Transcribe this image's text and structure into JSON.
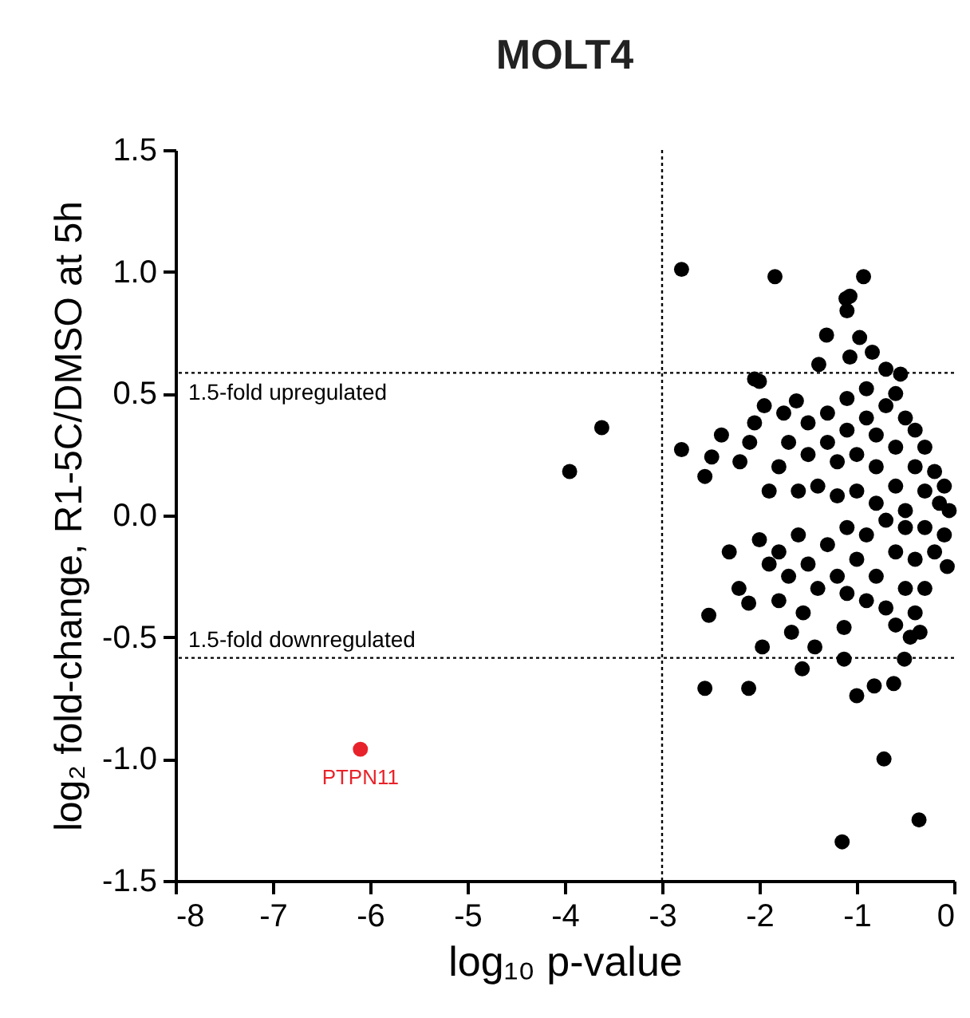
{
  "chart_data": {
    "type": "scatter",
    "title": "MOLT4",
    "xlabel": "log₁₀ p-value",
    "ylabel": "log₂ fold-change, R1-5C/DMSO at 5h",
    "xlim": [
      -8,
      0
    ],
    "xticks": [
      -8,
      -7,
      -6,
      -5,
      -4,
      -3,
      -2,
      -1,
      0
    ],
    "ylim": [
      -1.5,
      1.5
    ],
    "yticks": [
      {
        "value": -1.5,
        "label": "-1.5"
      },
      {
        "value": -1,
        "label": "-1.0"
      },
      {
        "value": -0.5,
        "label": "-0.5"
      },
      {
        "value": 0,
        "label": "0.0"
      },
      {
        "value": 0.5,
        "label": "0.5"
      },
      {
        "value": 1,
        "label": "1.0"
      },
      {
        "value": 1.5,
        "label": "1.5"
      }
    ],
    "grid": false,
    "marker": "circle",
    "ref_lines": [
      {
        "axis": "x",
        "value": -3,
        "line_style": "dotted"
      },
      {
        "axis": "y",
        "value": 0.585,
        "label": "1.5-fold upregulated",
        "line_style": "dotted"
      },
      {
        "axis": "y",
        "value": -0.585,
        "label": "1.5-fold downregulated",
        "line_style": "dotted"
      }
    ],
    "series": [
      {
        "color": "#000000",
        "x": [
          -2.8,
          -1.84,
          -0.93,
          -1.11,
          -1.07,
          -1.1,
          -1.31,
          -0.97,
          -0.84,
          -1.39,
          -1.07,
          -3.62,
          -3.95,
          -2.8,
          -2.39,
          -2.49,
          -2.56,
          -2.05,
          -1.62,
          -2.31,
          -2.52,
          -2.21,
          -2.11,
          -1.97,
          -1.67,
          -1.56,
          -2.56,
          -2.11,
          -1.0,
          -0.82,
          -0.62,
          -0.72,
          -0.36,
          -1.15,
          -1.43,
          -1.13,
          -1.13,
          -0.51,
          -0.07,
          -1.9,
          -1.8,
          -1.7,
          -1.6,
          -1.5,
          -1.5,
          -1.4,
          -1.3,
          -1.3,
          -1.2,
          -1.2,
          -1.1,
          -1.1,
          -1.0,
          -1.0,
          -0.9,
          -0.9,
          -0.8,
          -0.8,
          -0.8,
          -0.7,
          -0.6,
          -0.6,
          -0.6,
          -0.5,
          -0.5,
          -0.4,
          -0.4,
          -0.3,
          -0.3,
          -0.2,
          -0.15,
          -0.1,
          -0.05,
          -2.0,
          -1.95,
          -2.05,
          -2.1,
          -2.2,
          -1.75,
          -0.55,
          -0.7,
          -2.0,
          -1.9,
          -1.8,
          -1.7,
          -1.6,
          -1.5,
          -1.4,
          -1.3,
          -1.2,
          -1.1,
          -1.1,
          -1.0,
          -0.9,
          -0.9,
          -0.8,
          -0.7,
          -0.7,
          -0.6,
          -0.5,
          -0.5,
          -0.4,
          -0.4,
          -0.3,
          -0.3,
          -0.2,
          -0.1,
          -0.6,
          -0.45,
          -0.35,
          -1.8,
          -1.55
        ],
        "values": [
          1.01,
          0.98,
          0.98,
          0.89,
          0.9,
          0.84,
          0.74,
          0.73,
          0.67,
          0.62,
          0.65,
          0.36,
          0.18,
          0.27,
          0.33,
          0.24,
          0.16,
          0.56,
          0.47,
          -0.15,
          -0.41,
          -0.3,
          -0.36,
          -0.54,
          -0.48,
          -0.63,
          -0.71,
          -0.71,
          -0.74,
          -0.7,
          -0.69,
          -1.0,
          -1.25,
          -1.34,
          -0.54,
          -0.46,
          -0.59,
          -0.59,
          -0.21,
          0.1,
          0.2,
          0.3,
          0.1,
          0.25,
          0.38,
          0.12,
          0.3,
          0.42,
          0.08,
          0.22,
          0.35,
          0.48,
          0.1,
          0.25,
          0.4,
          0.52,
          0.05,
          0.2,
          0.33,
          0.45,
          0.12,
          0.28,
          0.5,
          0.4,
          0.02,
          0.2,
          0.35,
          0.1,
          0.28,
          0.18,
          0.05,
          0.12,
          0.02,
          0.55,
          0.45,
          0.38,
          0.3,
          0.22,
          0.42,
          0.58,
          0.6,
          -0.1,
          -0.2,
          -0.15,
          -0.25,
          -0.08,
          -0.2,
          -0.3,
          -0.12,
          -0.25,
          -0.05,
          -0.32,
          -0.18,
          -0.35,
          -0.08,
          -0.25,
          -0.02,
          -0.38,
          -0.15,
          -0.3,
          -0.05,
          -0.4,
          -0.18,
          -0.3,
          -0.05,
          -0.15,
          -0.08,
          -0.45,
          -0.5,
          -0.48,
          -0.35,
          -0.4
        ]
      },
      {
        "name": "PTPN11",
        "color": "#e8222a",
        "x": [
          -6.1
        ],
        "values": [
          -0.96
        ]
      }
    ]
  }
}
